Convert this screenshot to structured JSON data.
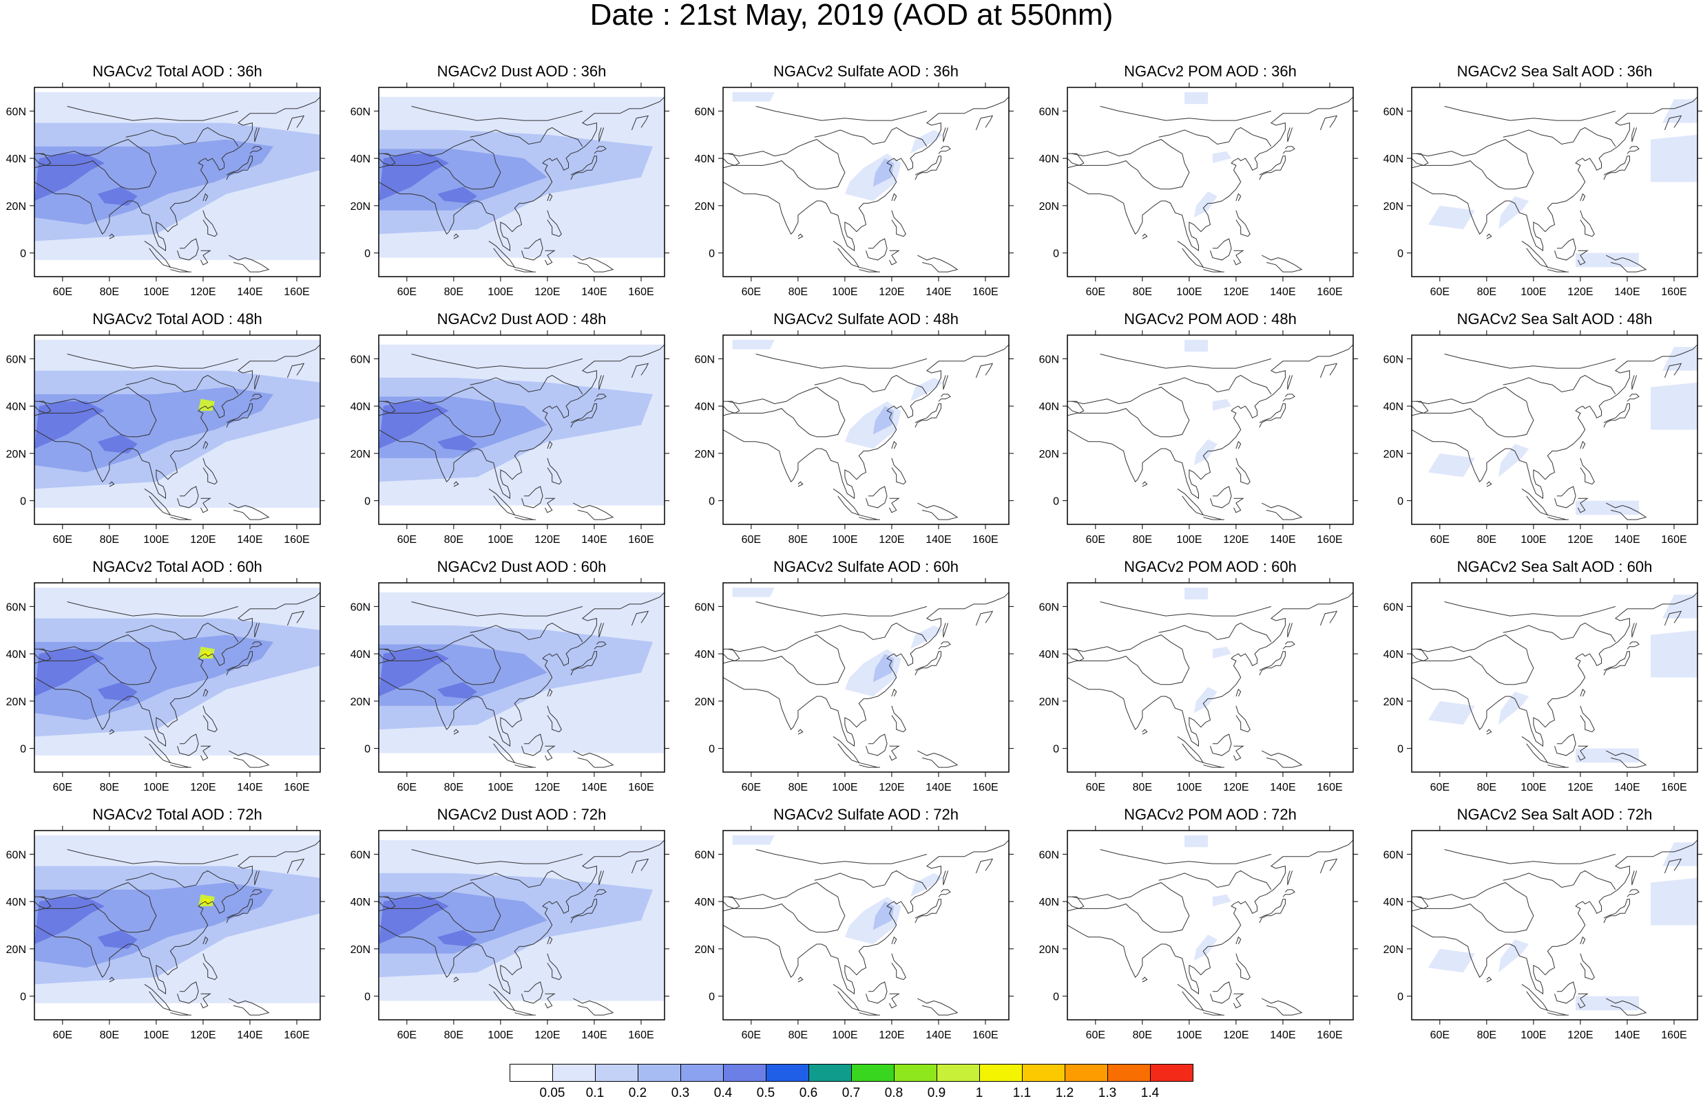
{
  "title": "Date : 21st May, 2019 (AOD at 550nm)",
  "axes": {
    "lon_ticks": [
      "60E",
      "80E",
      "100E",
      "120E",
      "140E",
      "160E"
    ],
    "lon_values": [
      60,
      80,
      100,
      120,
      140,
      160
    ],
    "lat_ticks": [
      "60N",
      "40N",
      "20N",
      "0"
    ],
    "lat_values": [
      60,
      40,
      20,
      0
    ],
    "lon_range": [
      48,
      170
    ],
    "lat_range": [
      -10,
      70
    ]
  },
  "panels": [
    [
      "NGACv2 Total AOD : 36h",
      "NGACv2 Dust AOD : 36h",
      "NGACv2 Sulfate AOD : 36h",
      "NGACv2 POM AOD : 36h",
      "NGACv2 Sea Salt AOD : 36h"
    ],
    [
      "NGACv2 Total AOD : 48h",
      "NGACv2 Dust AOD : 48h",
      "NGACv2 Sulfate AOD : 48h",
      "NGACv2 POM AOD : 48h",
      "NGACv2 Sea Salt AOD : 48h"
    ],
    [
      "NGACv2 Total AOD : 60h",
      "NGACv2 Dust AOD : 60h",
      "NGACv2 Sulfate AOD : 60h",
      "NGACv2 POM AOD : 60h",
      "NGACv2 Sea Salt AOD : 60h"
    ],
    [
      "NGACv2 Total AOD : 72h",
      "NGACv2 Dust AOD : 72h",
      "NGACv2 Sulfate AOD : 72h",
      "NGACv2 POM AOD : 72h",
      "NGACv2 Sea Salt  AOD : 72h"
    ]
  ],
  "colorbar": {
    "labels": [
      "0.05",
      "0.1",
      "0.2",
      "0.3",
      "0.4",
      "0.5",
      "0.6",
      "0.7",
      "0.8",
      "0.9",
      "1",
      "1.1",
      "1.2",
      "1.3",
      "1.4"
    ],
    "colors": [
      "#ffffff",
      "#dde6fb",
      "#c4d2f8",
      "#a8bcf4",
      "#8aa2ef",
      "#6b7fe6",
      "#1f5fe8",
      "#0f9c8c",
      "#39d61f",
      "#8ee61c",
      "#c8f038",
      "#f4f400",
      "#fcc800",
      "#fc9c00",
      "#f86e00",
      "#f42a18"
    ]
  },
  "species_colors": {
    "light": "#dfe7fb",
    "medium": "#b6c7f6",
    "strong": "#8fa4ee",
    "heavy": "#6a7be3",
    "peak": "#cdee38",
    "peak_core": "#f4f400"
  }
}
